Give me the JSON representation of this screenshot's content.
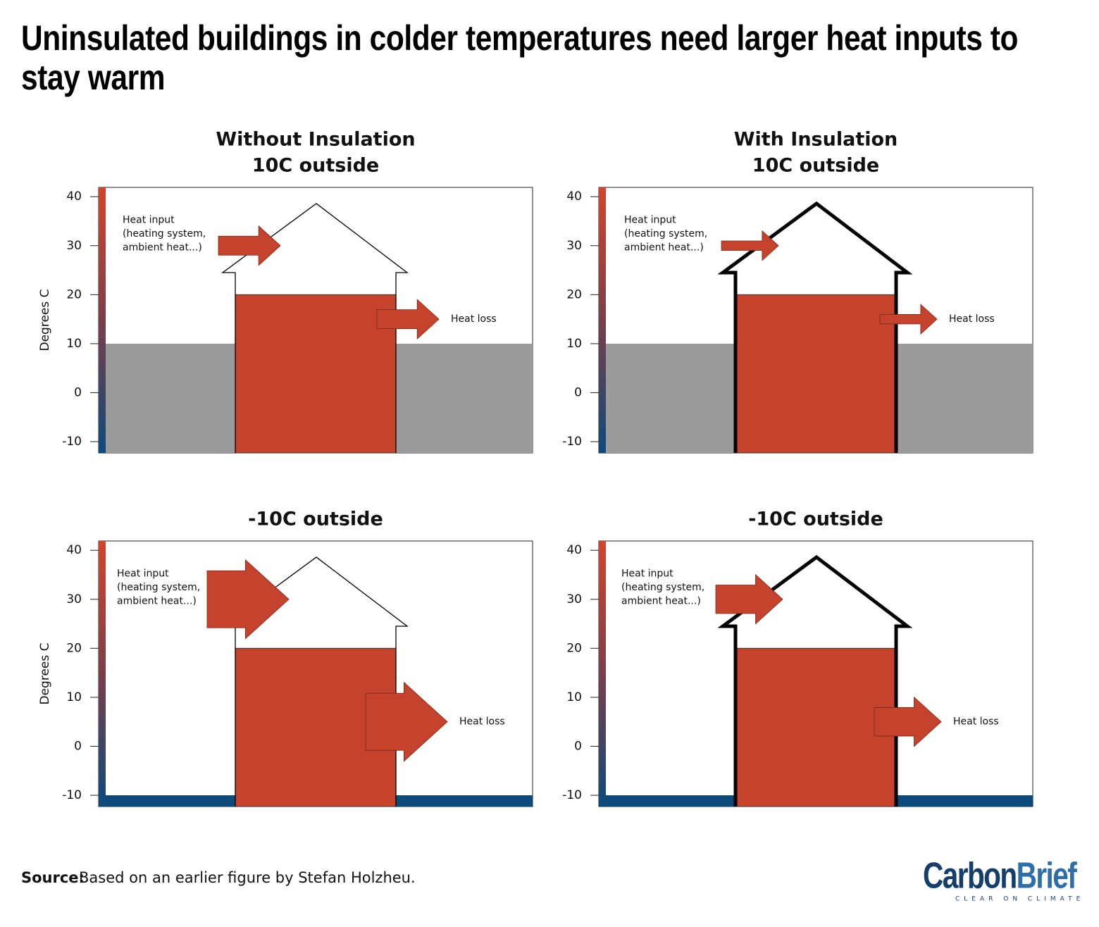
{
  "title": "Uninsulated buildings in colder temperatures need larger heat inputs to stay warm",
  "source": {
    "label": "Source:",
    "text": "Based on an earlier figure by Stefan Holzheu."
  },
  "logo": {
    "parts": [
      "Carbon",
      "Brief"
    ],
    "tagline": "CLEAR ON CLIMATE"
  },
  "chart_data": [
    {
      "type": "heat",
      "title": [
        "Without Insulation",
        "10C outside"
      ],
      "y_label": "Degrees C",
      "ylim": [
        -12.3,
        41.9
      ],
      "yticks": [
        -10,
        0,
        10,
        20,
        30,
        40
      ],
      "outside_temperature": 10,
      "inside_temperature": 20,
      "insulated": false,
      "outside_color": "#9b9b9b",
      "inside_color": "#c5432c",
      "input_label": [
        "Heat input",
        "(heating system,",
        "ambient heat...)"
      ],
      "loss_label": "Heat loss"
    },
    {
      "type": "heat",
      "title": [
        "With Insulation",
        "10C outside"
      ],
      "ylim": [
        -12.3,
        41.9
      ],
      "yticks": [
        -10,
        0,
        10,
        20,
        30,
        40
      ],
      "outside_temperature": 10,
      "inside_temperature": 20,
      "insulated": true,
      "outside_color": "#9b9b9b",
      "inside_color": "#c5432c",
      "input_label": [
        "Heat input",
        "(heating system,",
        "ambient heat...)"
      ],
      "loss_label": "Heat loss"
    },
    {
      "type": "heat",
      "title": [
        "-10C outside"
      ],
      "y_label": "Degrees C",
      "ylim": [
        -12.3,
        41.9
      ],
      "yticks": [
        -10,
        0,
        10,
        20,
        30,
        40
      ],
      "outside_temperature": -10,
      "inside_temperature": 20,
      "insulated": false,
      "outside_color": "#0d4a7c",
      "inside_color": "#c5432c",
      "input_label": [
        "Heat input",
        "(heating system,",
        "ambient heat...)"
      ],
      "loss_label": "Heat loss"
    },
    {
      "type": "heat",
      "title": [
        "-10C outside"
      ],
      "ylim": [
        -12.3,
        41.9
      ],
      "yticks": [
        -10,
        0,
        10,
        20,
        30,
        40
      ],
      "outside_temperature": -10,
      "inside_temperature": 20,
      "insulated": true,
      "outside_color": "#0d4a7c",
      "inside_color": "#c5432c",
      "input_label": [
        "Heat input",
        "(heating system,",
        "ambient heat...)"
      ],
      "loss_label": "Heat loss"
    }
  ]
}
